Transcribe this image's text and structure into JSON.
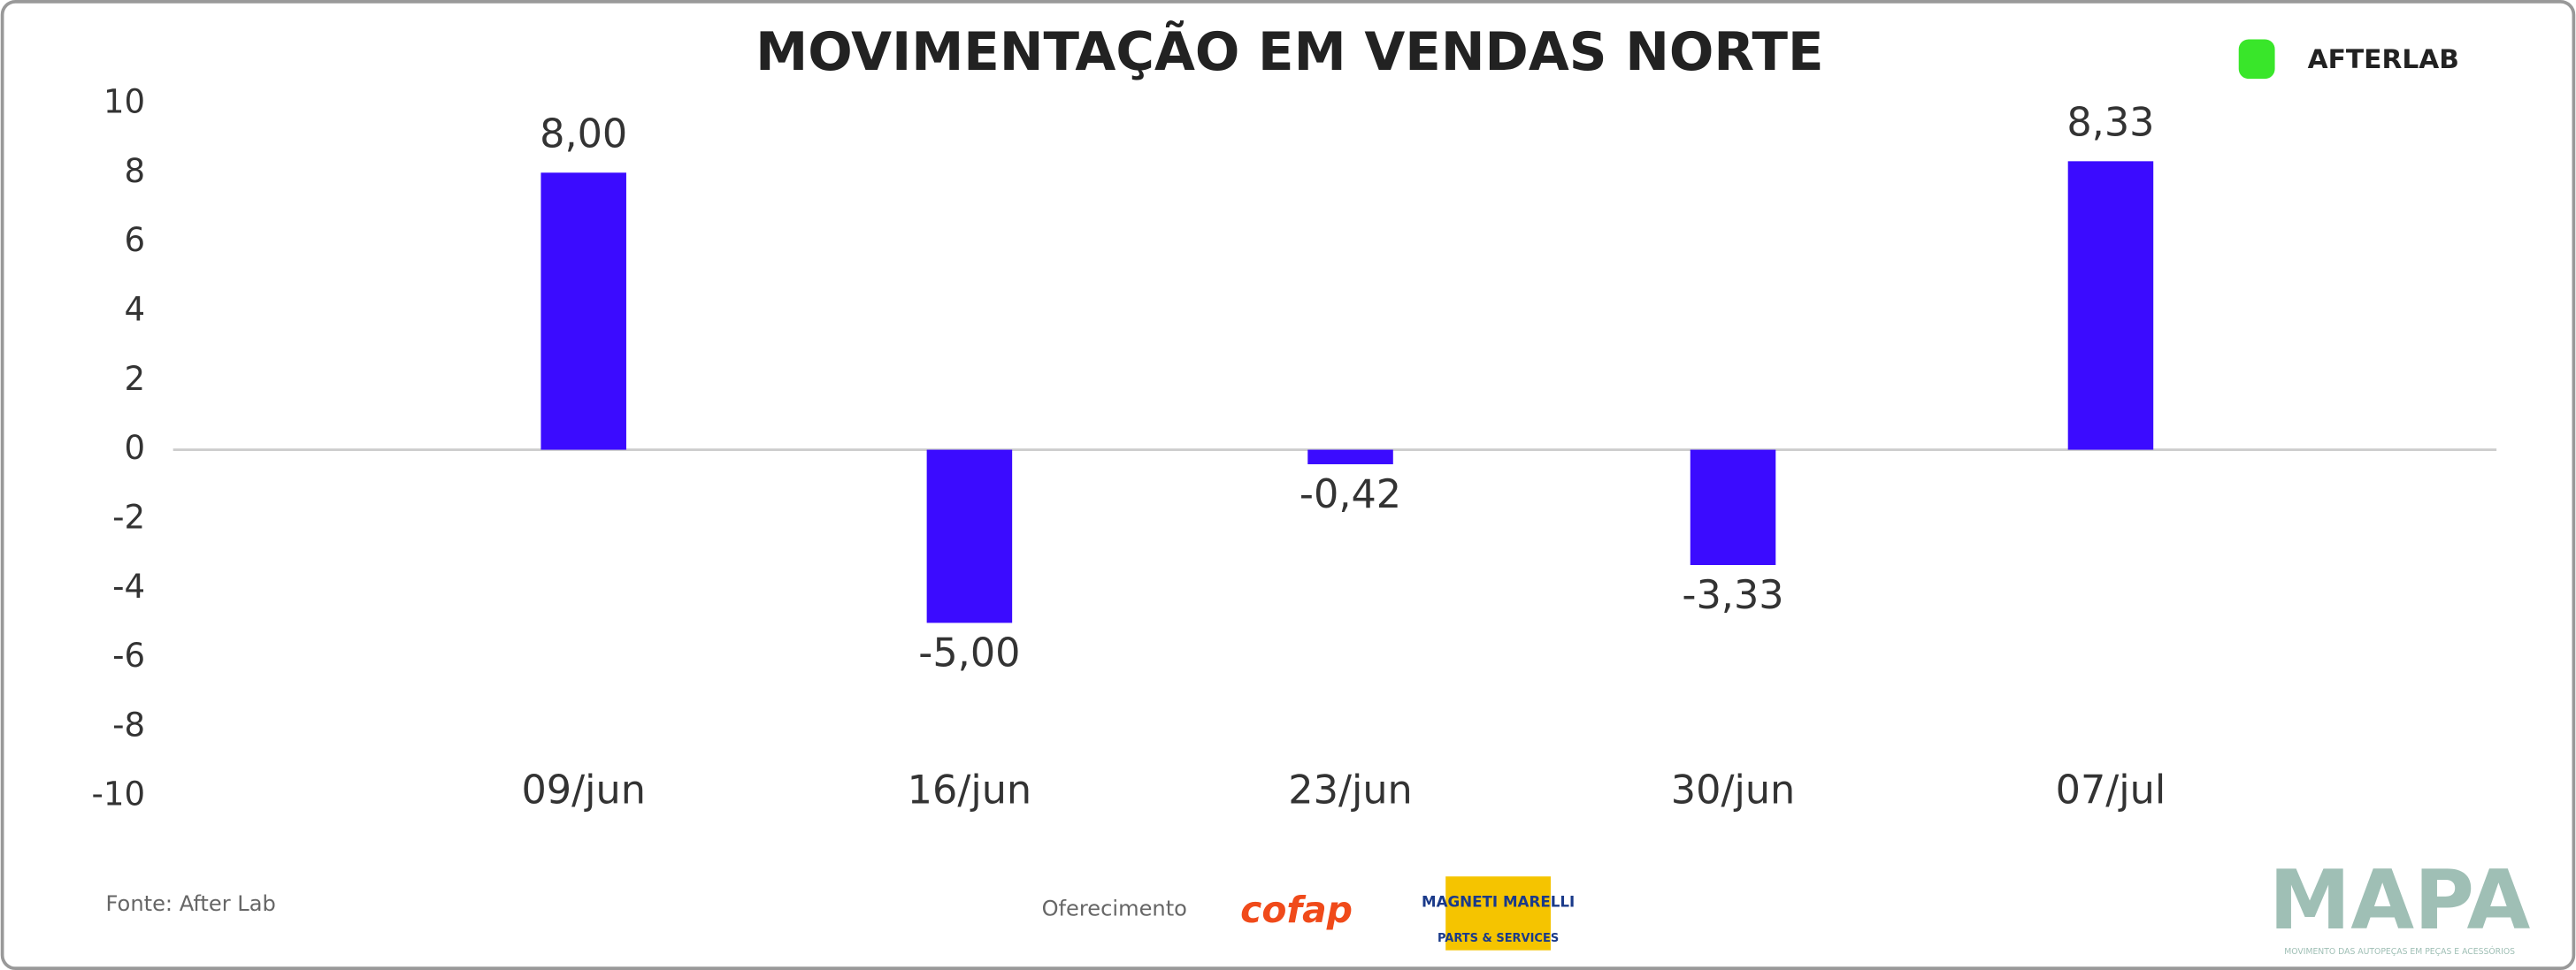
{
  "chart_data": {
    "type": "bar",
    "title": "MOVIMENTAÇÃO EM VENDAS NORTE",
    "categories": [
      "09/jun",
      "16/jun",
      "23/jun",
      "30/jun",
      "07/jul"
    ],
    "values": [
      8.0,
      -5.0,
      -0.42,
      -3.33,
      8.33
    ],
    "value_labels": [
      "8,00",
      "-5,00",
      "-0,42",
      "-3,33",
      "8,33"
    ],
    "color": "#3b0bff",
    "ylim": [
      -10,
      10
    ],
    "yticks": [
      -10,
      -8,
      -6,
      -4,
      -2,
      0,
      2,
      4,
      6,
      8,
      10
    ]
  },
  "logo": "AFTERLAB",
  "source": "Fonte: After Lab",
  "sponsor_label": "Oferecimento",
  "sponsors": [
    "cofap",
    "MAGNETI MARELLI",
    "PARTS & SERVICES"
  ],
  "brand": "MAPA",
  "brand_tagline": "MOVIMENTO DAS AUTOPEÇAS EM PEÇAS E ACESSÓRIOS"
}
